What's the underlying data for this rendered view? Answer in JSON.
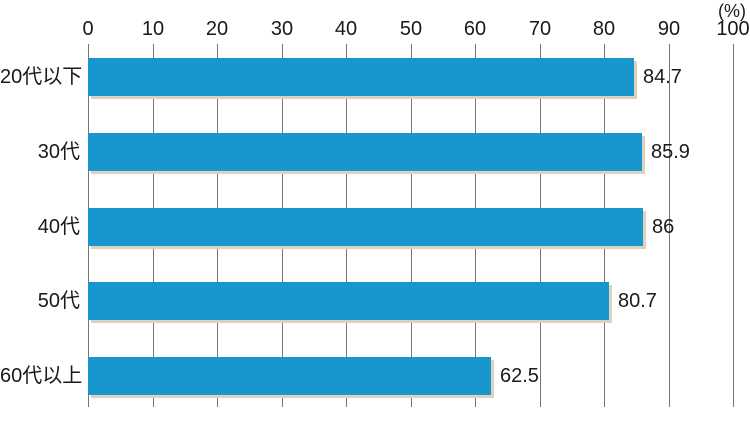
{
  "chart_data": {
    "type": "bar",
    "orientation": "horizontal",
    "title": "",
    "xlabel": "",
    "ylabel": "",
    "unit_label": "(%)",
    "categories": [
      "20代以下",
      "30代",
      "40代",
      "50代",
      "60代以上"
    ],
    "values": [
      84.7,
      85.9,
      86,
      80.7,
      62.5
    ],
    "value_labels": [
      "84.7",
      "85.9",
      "86",
      "80.7",
      "62.5"
    ],
    "x_ticks": [
      0,
      10,
      20,
      30,
      40,
      50,
      60,
      70,
      80,
      90,
      100
    ],
    "xlim": [
      0,
      100
    ],
    "grid": true,
    "legend": "none",
    "bar_color": "#1797cd",
    "bar_shadow_color": "#ddd3bc",
    "gridline_color": "#767676",
    "text_color": "#1a1a1a",
    "background_color": "#ffffff"
  }
}
